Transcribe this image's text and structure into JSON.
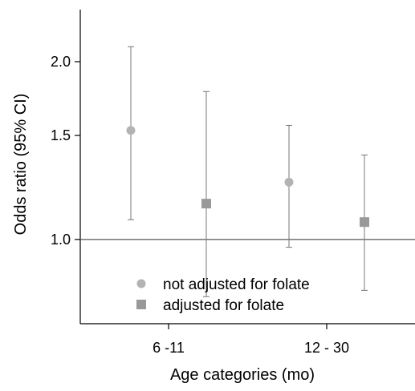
{
  "chart_data": {
    "type": "scatter",
    "variant": "point-with-error-bars",
    "title": "",
    "xlabel": "Age categories (mo)",
    "ylabel": "Odds ratio (95% CI)",
    "y_scale": "log",
    "ylim": [
      0.72,
      2.45
    ],
    "categories": [
      "6 -11",
      "12 - 30"
    ],
    "yticks": [
      {
        "value": 1.0,
        "label": "1.0"
      },
      {
        "value": 1.5,
        "label": "1.5"
      },
      {
        "value": 2.0,
        "label": "2.0"
      }
    ],
    "reference_line": 1.0,
    "series": [
      {
        "name": "not adjusted for folate",
        "marker": "circle",
        "color": "#b3b3b3",
        "points": [
          {
            "category": "6 -11",
            "value": 1.53,
            "lower": 1.08,
            "upper": 2.12
          },
          {
            "category": "12 - 30",
            "value": 1.25,
            "lower": 0.97,
            "upper": 1.56
          }
        ]
      },
      {
        "name": "adjusted for folate",
        "marker": "square",
        "color": "#999999",
        "points": [
          {
            "category": "6 -11",
            "value": 1.15,
            "lower": 0.8,
            "upper": 1.78
          },
          {
            "category": "12 - 30",
            "value": 1.07,
            "lower": 0.82,
            "upper": 1.39
          }
        ]
      }
    ],
    "legend": {
      "position": "bottom-center"
    }
  }
}
